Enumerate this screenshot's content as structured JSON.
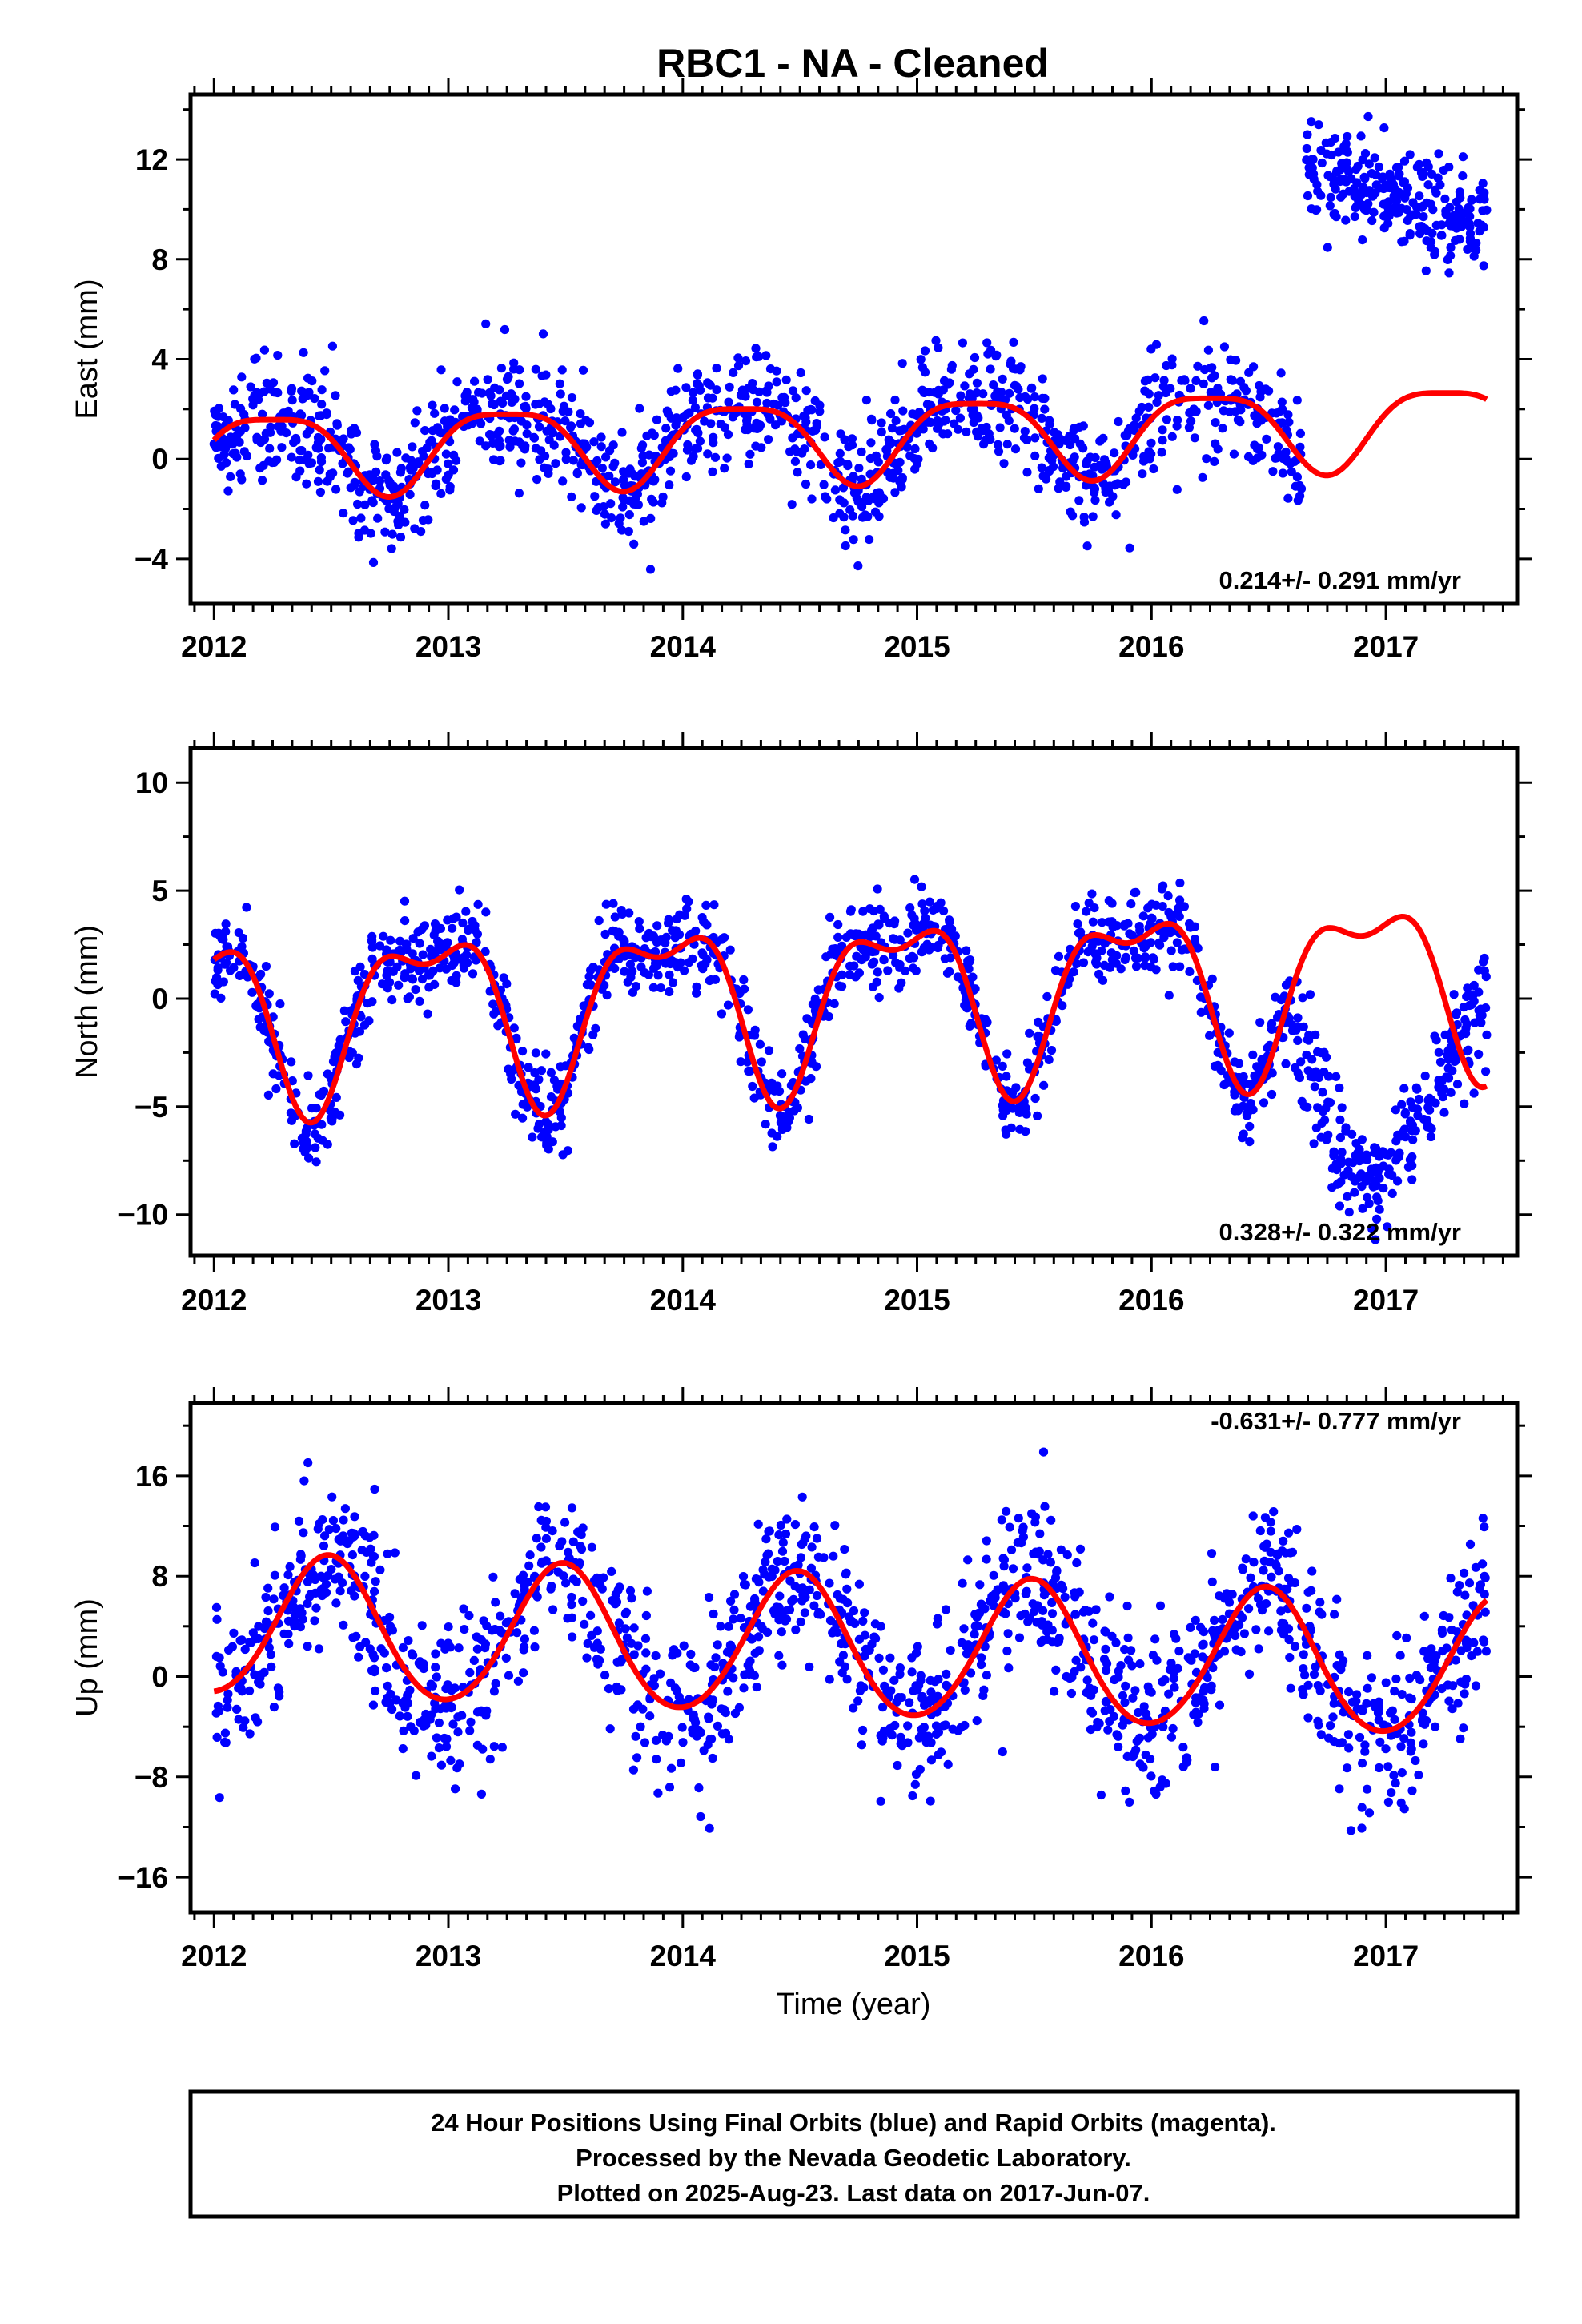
{
  "chart_data": [
    {
      "type": "scatter",
      "title": "RBC1  - NA - Cleaned",
      "ylabel": "East (mm)",
      "xlabel": "",
      "xlim": [
        2011.9,
        2017.56
      ],
      "ylim": [
        -5.8,
        14.6
      ],
      "xticks": [
        2012,
        2013,
        2014,
        2015,
        2016,
        2017
      ],
      "yticks": [
        -4,
        0,
        4,
        8,
        12
      ],
      "ytick_labels": [
        "−4",
        "0",
        "4",
        "8",
        "12"
      ],
      "rate_text": "0.214+/- 0.291 mm/yr",
      "grid": false,
      "points_color": "#0000ff",
      "model_color": "#ff0000",
      "seasonal": {
        "c": 0.9,
        "trend": 0.214,
        "a1": 1.6,
        "p1": 1.55,
        "a2": 0.4,
        "p2": 0.0
      },
      "segments": [
        {
          "x0": 2012.0,
          "x1": 2016.64,
          "offset": 0.0,
          "noise": 1.15,
          "count": 1250
        },
        {
          "x0": 2016.66,
          "x1": 2017.43,
          "offset": 11.6,
          "slope": -2.7,
          "noise": 1.05,
          "count": 250
        }
      ],
      "model_range": [
        2012.0,
        2017.43
      ]
    },
    {
      "type": "scatter",
      "title": "",
      "ylabel": "North (mm)",
      "xlabel": "",
      "xlim": [
        2011.9,
        2017.56
      ],
      "ylim": [
        -11.9,
        11.6
      ],
      "xticks": [
        2012,
        2013,
        2014,
        2015,
        2016,
        2017
      ],
      "yticks": [
        -10,
        -5,
        0,
        5,
        10
      ],
      "ytick_labels": [
        "−10",
        "−5",
        "0",
        "5",
        "10"
      ],
      "rate_text": "0.328+/- 0.322 mm/yr",
      "grid": false,
      "points_color": "#0000ff",
      "model_color": "#ff0000",
      "seasonal": {
        "c": 0.2,
        "trend": 0.328,
        "a1": 3.6,
        "p1": -0.5,
        "a2": 1.6,
        "p2": 2.0
      },
      "segments": [
        {
          "x0": 2012.0,
          "x1": 2016.6,
          "offset": 0.0,
          "noise": 1.05,
          "count": 1250
        },
        {
          "x0": 2016.6,
          "x1": 2017.43,
          "shape": "vee",
          "start": -0.5,
          "min": -8.5,
          "min_at": 2016.95,
          "end": 0.5,
          "noise": 1.4,
          "count": 260
        }
      ],
      "model_range": [
        2012.0,
        2017.43
      ]
    },
    {
      "type": "scatter",
      "title": "",
      "ylabel": "Up (mm)",
      "xlabel": "Time (year)",
      "xlim": [
        2011.9,
        2017.56
      ],
      "ylim": [
        -18.8,
        21.8
      ],
      "xticks": [
        2012,
        2013,
        2014,
        2015,
        2016,
        2017
      ],
      "yticks": [
        -16,
        -8,
        0,
        8,
        16
      ],
      "ytick_labels": [
        "−16",
        "−8",
        "0",
        "8",
        "16"
      ],
      "rate_text": "-0.631+/- 0.777 mm/yr",
      "grid": false,
      "points_color": "#0000ff",
      "model_color": "#ff0000",
      "seasonal": {
        "c": 2.3,
        "trend": -0.631,
        "a1": 5.6,
        "p1": 3.06,
        "a2": 0.4,
        "p2": 0.0
      },
      "segments": [
        {
          "x0": 2012.0,
          "x1": 2017.43,
          "offset": 0.0,
          "noise": 3.3,
          "count": 1500
        }
      ],
      "model_range": [
        2012.0,
        2017.43
      ]
    }
  ],
  "footer": {
    "line1": "24 Hour Positions Using Final Orbits (blue) and Rapid Orbits (magenta).",
    "line2": "Processed by the Nevada Geodetic Laboratory.",
    "line3": "Plotted on 2025-Aug-23. Last data on 2017-Jun-07."
  }
}
